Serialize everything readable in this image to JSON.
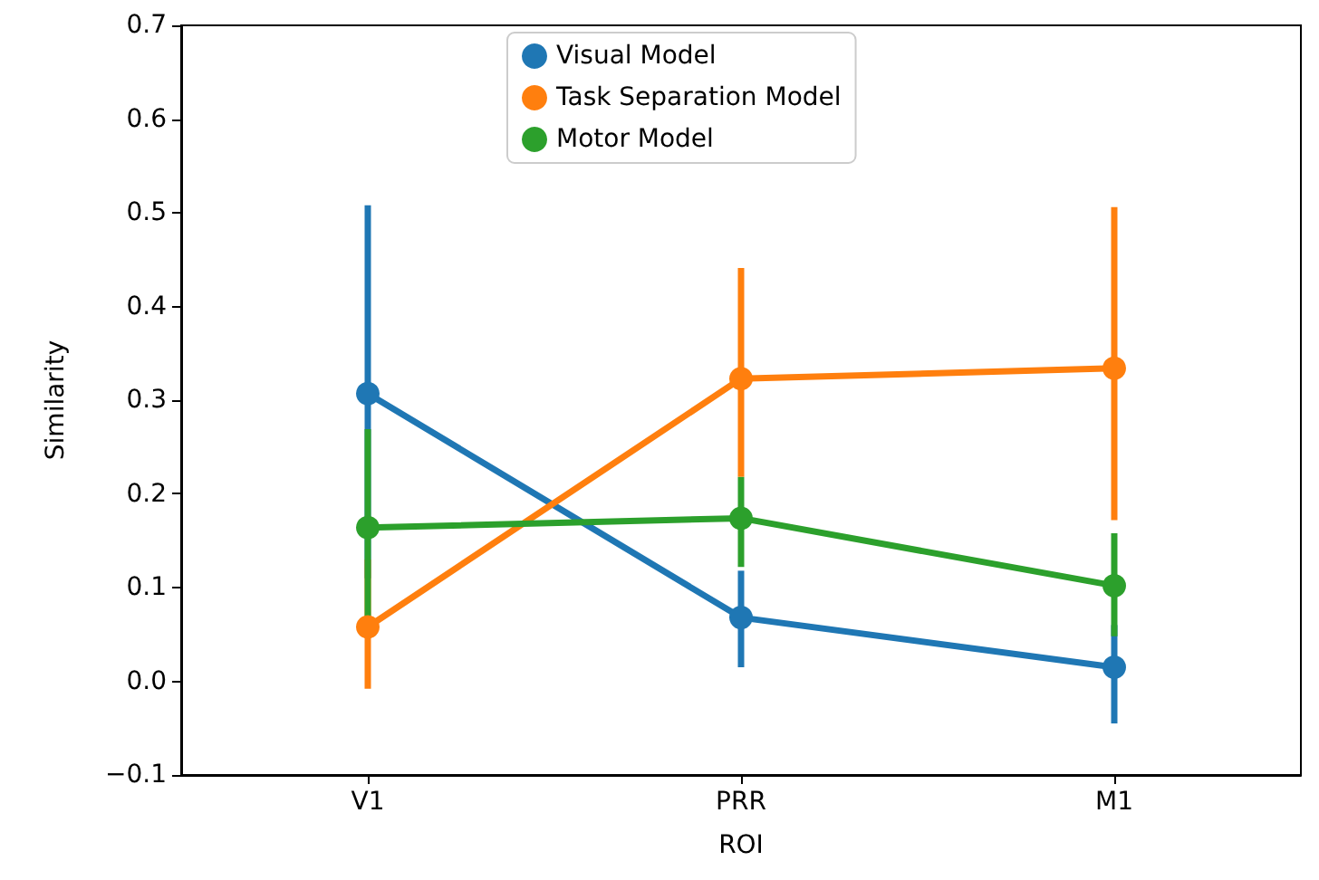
{
  "chart_data": {
    "type": "line",
    "xlabel": "ROI",
    "ylabel": "Similarity",
    "categories": [
      "V1",
      "PRR",
      "M1"
    ],
    "series": [
      {
        "name": "Visual Model",
        "color": "#1f77b4",
        "values": [
          0.307,
          0.068,
          0.015
        ],
        "errors": [
          [
            0.11,
            0.508
          ],
          [
            0.015,
            0.118
          ],
          [
            -0.045,
            0.06
          ]
        ]
      },
      {
        "name": "Task Separation Model",
        "color": "#ff7f0e",
        "values": [
          0.058,
          0.323,
          0.334
        ],
        "errors": [
          [
            -0.008,
            0.13
          ],
          [
            0.218,
            0.441
          ],
          [
            0.172,
            0.506
          ]
        ]
      },
      {
        "name": "Motor Model",
        "color": "#2ca02c",
        "values": [
          0.164,
          0.174,
          0.102
        ],
        "errors": [
          [
            0.07,
            0.269
          ],
          [
            0.122,
            0.218
          ],
          [
            0.048,
            0.158
          ]
        ]
      }
    ],
    "ylim": [
      -0.1,
      0.7
    ],
    "yticks": [
      {
        "value": -0.1,
        "label": "−0.1"
      },
      {
        "value": 0,
        "label": "0.0"
      },
      {
        "value": 0.1,
        "label": "0.1"
      },
      {
        "value": 0.2,
        "label": "0.2"
      },
      {
        "value": 0.3,
        "label": "0.3"
      },
      {
        "value": 0.4,
        "label": "0.4"
      },
      {
        "value": 0.5,
        "label": "0.5"
      },
      {
        "value": 0.6,
        "label": "0.6"
      },
      {
        "value": 0.7,
        "label": "0.7"
      }
    ],
    "grid": false,
    "legend": "top",
    "marker": "circle",
    "line_style": "solid"
  }
}
